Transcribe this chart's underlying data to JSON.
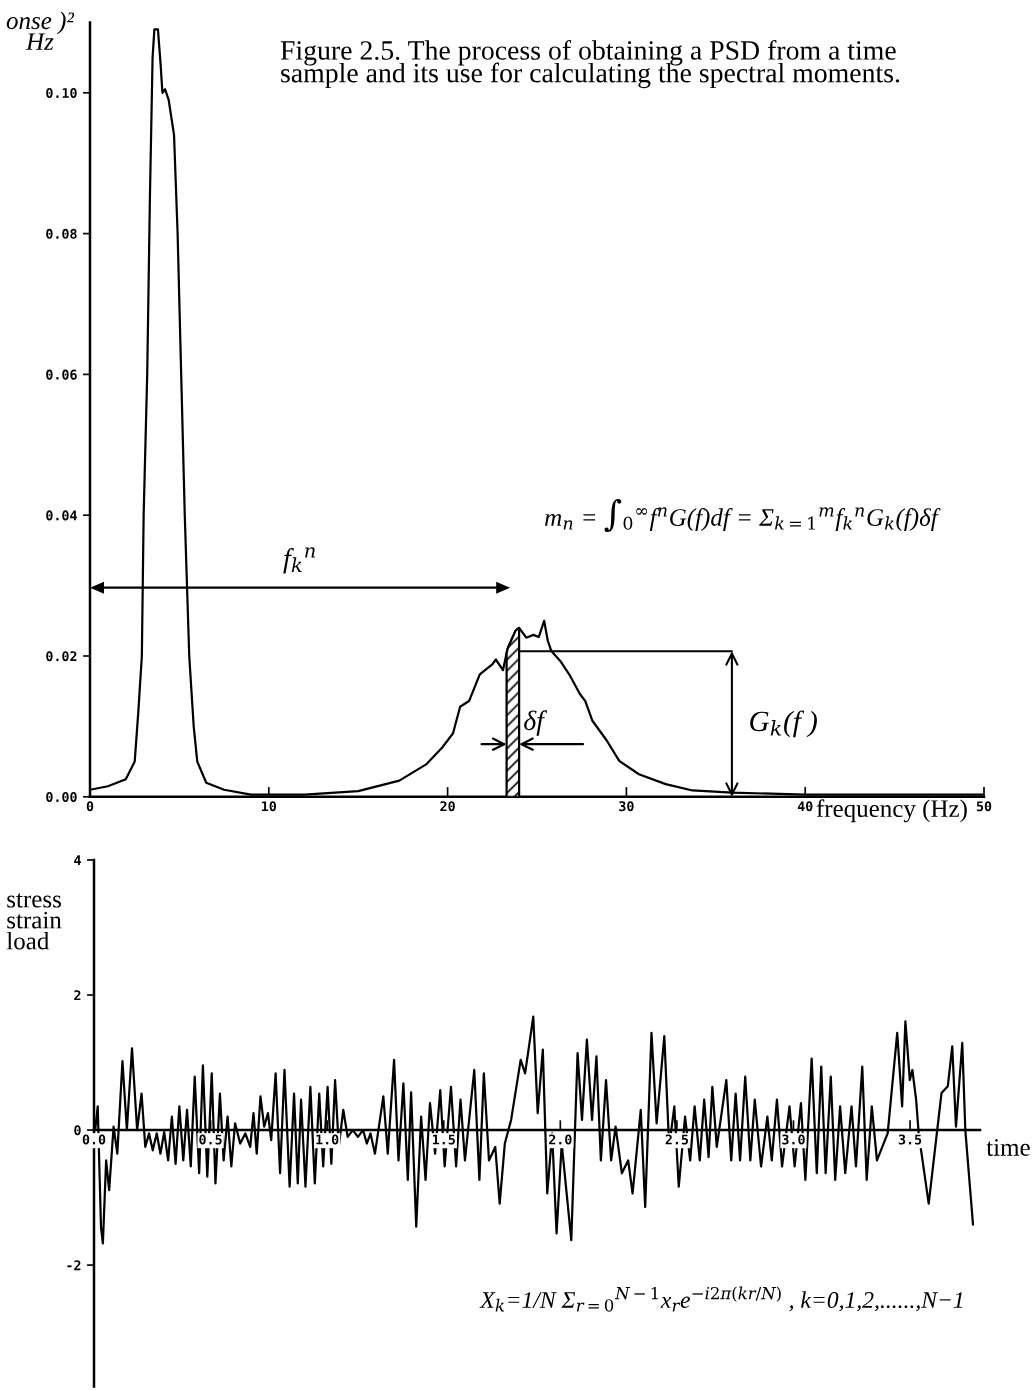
{
  "chart_data": [
    {
      "type": "line",
      "title": "Figure 2.5. The process of obtaining a PSD from a time\nsample and its use for calculating the spectral moments.",
      "xlabel": "frequency (Hz)",
      "ylabel": "onse )²\nHz",
      "color": "#000000",
      "x": [
        0,
        1,
        2,
        2.5,
        2.7,
        2.9,
        3.0,
        3.2,
        3.35,
        3.5,
        3.6,
        3.8,
        3.95,
        4.05,
        4.2,
        4.4,
        4.7,
        4.9,
        5.1,
        5.3,
        5.55,
        5.8,
        6.0,
        6.5,
        7.5,
        9,
        12,
        15,
        17.3,
        18.8,
        19.7,
        20.3,
        20.7,
        21.2,
        21.8,
        22.5,
        22.7,
        23.1,
        23.35,
        23.8,
        24.0,
        24.4,
        24.8,
        25.1,
        25.4,
        25.6,
        25.8,
        26.3,
        26.8,
        27.4,
        27.7,
        28.1,
        28.9,
        29.6,
        30.7,
        32.2,
        33.7,
        35.9,
        40,
        45,
        50
      ],
      "values": [
        0.001,
        0.0015,
        0.0025,
        0.005,
        0.012,
        0.02,
        0.04,
        0.06,
        0.085,
        0.105,
        0.109,
        0.109,
        0.104,
        0.1,
        0.1005,
        0.099,
        0.094,
        0.08,
        0.06,
        0.04,
        0.02,
        0.01,
        0.005,
        0.002,
        0.001,
        0.0003,
        0.0003,
        0.0008,
        0.0023,
        0.0046,
        0.007,
        0.009,
        0.0128,
        0.0136,
        0.0174,
        0.0188,
        0.0195,
        0.018,
        0.021,
        0.0236,
        0.024,
        0.0226,
        0.023,
        0.0227,
        0.025,
        0.0222,
        0.0207,
        0.0193,
        0.0174,
        0.0146,
        0.0136,
        0.0108,
        0.008,
        0.0051,
        0.0032,
        0.0018,
        0.0009,
        0.0006,
        0.0003,
        0.0003,
        0.0003
      ],
      "xlim": [
        0,
        50
      ],
      "xticks": [
        0,
        10,
        20,
        30,
        40,
        50
      ],
      "ylim": [
        0,
        0.11
      ],
      "yticks": [
        {
          "value": 0,
          "label": "0.00"
        },
        0.02,
        0.04,
        0.06,
        0.08,
        {
          "value": 0.1,
          "label": "0.10"
        }
      ],
      "bands": [
        {
          "axis": "x",
          "from": 23.3,
          "to": 24.0,
          "label": "δf"
        }
      ],
      "annotations": [
        "m$_{n}$ = ∫$_{0}$$^{∞}$f$^{n}$G(f)df = Σ$_{k=1}$$^{m}$f$_{k}$$^{n}$G$_{k}$(f)δf",
        "f$_{k}$$^{n}$",
        "G$_{k}$(f )"
      ]
    },
    {
      "type": "line",
      "xlabel": "time",
      "ylabel": "stress\nstrain\nload",
      "color": "#000000",
      "x": [
        0.005,
        0.016,
        0.03,
        0.038,
        0.052,
        0.065,
        0.084,
        0.1,
        0.122,
        0.141,
        0.163,
        0.185,
        0.204,
        0.22,
        0.236,
        0.252,
        0.269,
        0.285,
        0.301,
        0.318,
        0.334,
        0.35,
        0.366,
        0.383,
        0.399,
        0.415,
        0.432,
        0.451,
        0.467,
        0.486,
        0.505,
        0.521,
        0.54,
        0.556,
        0.573,
        0.589,
        0.605,
        0.627,
        0.649,
        0.67,
        0.684,
        0.698,
        0.714,
        0.73,
        0.746,
        0.76,
        0.779,
        0.798,
        0.817,
        0.839,
        0.858,
        0.874,
        0.888,
        0.907,
        0.928,
        0.947,
        0.966,
        0.983,
        1.002,
        1.018,
        1.034,
        1.05,
        1.069,
        1.088,
        1.11,
        1.132,
        1.154,
        1.17,
        1.186,
        1.205,
        1.241,
        1.26,
        1.287,
        1.306,
        1.327,
        1.346,
        1.36,
        1.382,
        1.403,
        1.422,
        1.441,
        1.463,
        1.485,
        1.504,
        1.531,
        1.553,
        1.572,
        1.591,
        1.631,
        1.653,
        1.672,
        1.694,
        1.721,
        1.74,
        1.762,
        1.789,
        1.83,
        1.849,
        1.884,
        1.903,
        1.925,
        1.944,
        1.965,
        1.984,
        2.006,
        2.047,
        2.074,
        2.093,
        2.114,
        2.136,
        2.155,
        2.174,
        2.196,
        2.218,
        2.237,
        2.264,
        2.291,
        2.31,
        2.345,
        2.364,
        2.391,
        2.413,
        2.446,
        2.467,
        2.489,
        2.508,
        2.535,
        2.557,
        2.576,
        2.598,
        2.617,
        2.636,
        2.652,
        2.671,
        2.712,
        2.733,
        2.752,
        2.771,
        2.793,
        2.815,
        2.834,
        2.861,
        2.888,
        2.907,
        2.929,
        2.951,
        2.983,
        3.005,
        3.032,
        3.051,
        3.078,
        3.1,
        3.119,
        3.138,
        3.16,
        3.179,
        3.2,
        3.222,
        3.249,
        3.268,
        3.295,
        3.314,
        3.336,
        3.358,
        3.404,
        3.445,
        3.466,
        3.48,
        3.499,
        3.51,
        3.526,
        3.537,
        3.58,
        3.635,
        3.662,
        3.681,
        3.697,
        3.724,
        3.737,
        3.77
      ],
      "values": [
        0,
        0.35,
        -1.44,
        -1.68,
        -0.45,
        -0.89,
        0.05,
        -0.35,
        1.02,
        0,
        1.21,
        0,
        0.54,
        -0.25,
        -0.05,
        -0.3,
        -0.05,
        -0.35,
        -0.03,
        -0.45,
        0.2,
        -0.5,
        0.35,
        -0.45,
        0.3,
        -0.54,
        0.79,
        -0.64,
        0.96,
        -0.69,
        0.84,
        -0.79,
        0.54,
        -0.45,
        0.2,
        -0.54,
        0.1,
        -0.2,
        -0.05,
        -0.25,
        0.25,
        -0.35,
        0.5,
        0.05,
        0.25,
        -0.15,
        0.84,
        -0.64,
        0.89,
        -0.84,
        0.54,
        -0.79,
        0.45,
        -0.84,
        0.64,
        -0.79,
        0.54,
        -0.54,
        0.64,
        -0.5,
        0.74,
        -0.25,
        0.3,
        -0.1,
        0,
        -0.1,
        0,
        -0.2,
        -0.05,
        -0.35,
        0.5,
        -0.35,
        1.04,
        -0.45,
        0.69,
        -0.74,
        0.56,
        -1.43,
        0.2,
        -0.74,
        0.4,
        -0.35,
        0.59,
        -0.54,
        0.64,
        -0.54,
        0.45,
        -0.45,
        0.89,
        -0.74,
        0.84,
        -0.45,
        -0.25,
        -1.09,
        -0.2,
        0.15,
        1.04,
        0.84,
        1.68,
        0.25,
        1.19,
        -0.94,
        -0.05,
        -1.53,
        -0.2,
        -1.63,
        1.14,
        0.15,
        1.34,
        0.15,
        1.09,
        -0.45,
        0.74,
        -0.45,
        0.05,
        -0.64,
        -0.45,
        -0.94,
        0.3,
        -1.14,
        1.44,
        0.1,
        1.39,
        -0.25,
        0.35,
        -0.84,
        0.2,
        -0.45,
        0.35,
        -0.45,
        0.45,
        -0.4,
        0.64,
        -0.25,
        0.74,
        -0.45,
        0.54,
        -0.45,
        0.79,
        -0.45,
        0.45,
        -0.54,
        0.2,
        -0.45,
        0.45,
        -0.54,
        0.35,
        -0.54,
        0.4,
        -0.74,
        1.06,
        -0.64,
        0.94,
        -0.64,
        0.79,
        -0.74,
        0.35,
        -0.64,
        0.35,
        -0.54,
        0.94,
        -0.74,
        0.35,
        -0.45,
        -0.05,
        1.44,
        0.35,
        1.61,
        0.74,
        0.89,
        0.45,
        -0.05,
        -1.09,
        0.55,
        0.65,
        1.24,
        0.05,
        1.29,
        0,
        -1.4
      ],
      "xlim": [
        0,
        3.8
      ],
      "xticks": [
        {
          "value": 0,
          "label": "0.0"
        },
        0.5,
        {
          "value": 1,
          "label": "1.0"
        },
        1.5,
        {
          "value": 2,
          "label": "2.0"
        },
        2.5,
        {
          "value": 3,
          "label": "3.0"
        },
        3.5
      ],
      "ylim": [
        -3.8,
        4
      ],
      "yticks": [
        -2,
        0,
        2,
        4
      ],
      "annotations": [
        "X$_{k}$=1/N Σ$_{r=0}$$^{N−1}$x$_{r}$e$^{−i2π(kr/N)}$ , k=0,1,2,......,N−1"
      ]
    }
  ]
}
